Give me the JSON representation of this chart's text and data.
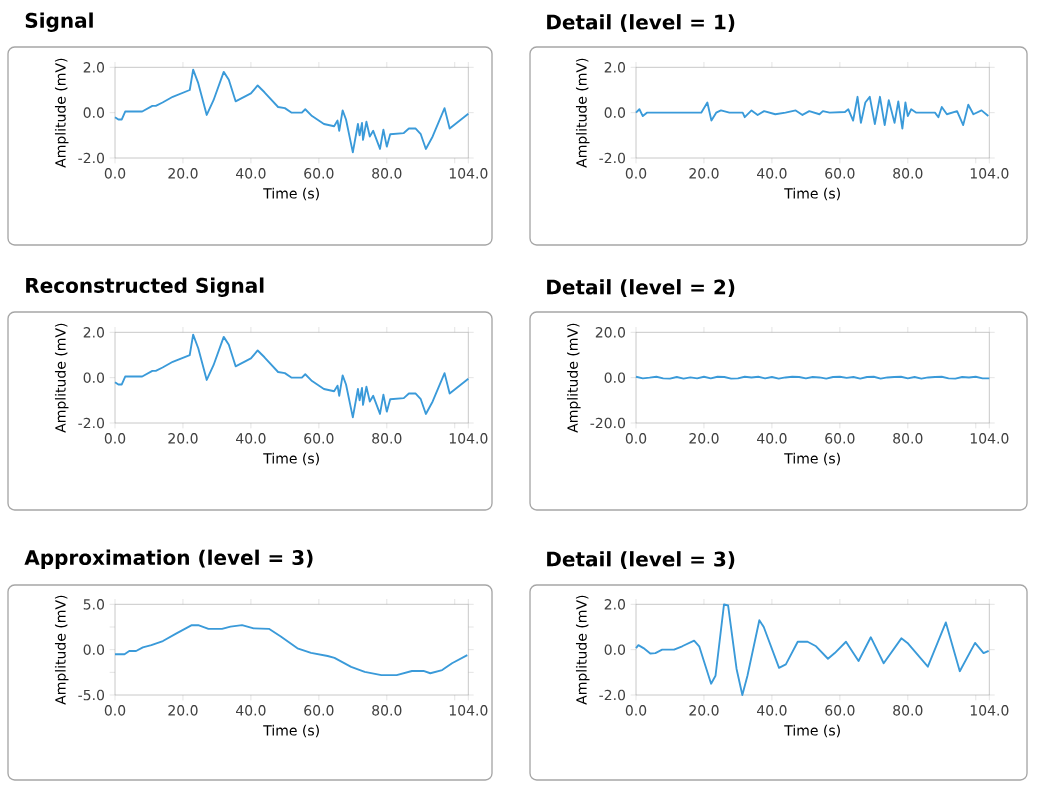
{
  "chart_data": [
    {
      "type": "line",
      "title": "Signal",
      "xlabel": "Time (s)",
      "ylabel": "Amplitude (mV)",
      "xlim": [
        0,
        104
      ],
      "ylim": [
        -2,
        2
      ],
      "xticks": [
        {
          "value": 0,
          "label": "0.0"
        },
        {
          "value": 20,
          "label": "20.0"
        },
        {
          "value": 40,
          "label": "40.0"
        },
        {
          "value": 60,
          "label": "60.0"
        },
        {
          "value": 80,
          "label": "80.0"
        },
        {
          "value": 100,
          "label": null
        },
        {
          "value": 104,
          "label": "104.0"
        }
      ],
      "yticks": [
        {
          "value": -2,
          "label": "-2.0"
        },
        {
          "value": 0,
          "label": "0.0"
        },
        {
          "value": 2,
          "label": "2.0"
        }
      ],
      "x": [
        0,
        1,
        2,
        3,
        8,
        11,
        12,
        14,
        17,
        22,
        23,
        24.5,
        27,
        29,
        32,
        33.5,
        35.5,
        40,
        42,
        44,
        48,
        50,
        52,
        55,
        56,
        58,
        61.5,
        64.5,
        65.5,
        66,
        67,
        68,
        70,
        71.5,
        72,
        72.7,
        73,
        74,
        75,
        76,
        78,
        79,
        80,
        81,
        85,
        86.5,
        88.5,
        90,
        91.5,
        93.5,
        97,
        98.5,
        104
      ],
      "series": [
        {
          "color": "#3a9ad9",
          "values": [
            -0.2,
            -0.3,
            -0.3,
            0.05,
            0.05,
            0.3,
            0.3,
            0.45,
            0.7,
            1.0,
            1.9,
            1.3,
            -0.1,
            0.55,
            1.8,
            1.45,
            0.5,
            0.85,
            1.2,
            0.9,
            0.25,
            0.2,
            0.0,
            0.0,
            0.15,
            -0.15,
            -0.5,
            -0.6,
            -0.35,
            -0.8,
            0.1,
            -0.3,
            -1.75,
            -0.5,
            -1.0,
            -0.45,
            -1.2,
            -0.4,
            -1.05,
            -0.8,
            -1.6,
            -0.75,
            -1.5,
            -0.95,
            -0.9,
            -0.7,
            -0.7,
            -0.95,
            -1.6,
            -1.05,
            0.2,
            -0.7,
            -0.05
          ]
        }
      ]
    },
    {
      "type": "line",
      "title": "Detail (level = 1)",
      "xlabel": "Time (s)",
      "ylabel": "Amplitude (mV)",
      "xlim": [
        0,
        104
      ],
      "ylim": [
        -2,
        2
      ],
      "xticks": [
        {
          "value": 0,
          "label": "0.0"
        },
        {
          "value": 20,
          "label": "20.0"
        },
        {
          "value": 40,
          "label": "40.0"
        },
        {
          "value": 60,
          "label": "60.0"
        },
        {
          "value": 80,
          "label": "80.0"
        },
        {
          "value": 100,
          "label": null
        },
        {
          "value": 104,
          "label": "104.0"
        }
      ],
      "yticks": [
        {
          "value": -2,
          "label": "-2.0"
        },
        {
          "value": 0,
          "label": "0.0"
        },
        {
          "value": 2,
          "label": "2.0"
        }
      ],
      "x": [
        0,
        1,
        2,
        3.2,
        19.2,
        21,
        22.2,
        23.6,
        25,
        27.5,
        31.4,
        32,
        34,
        35.8,
        37.7,
        41,
        44,
        47,
        49,
        51,
        54,
        55,
        57,
        61.5,
        62.5,
        63.9,
        65.2,
        66.2,
        67.5,
        68.8,
        70.3,
        71.8,
        73.2,
        74.4,
        76.1,
        77.2,
        78.4,
        79.3,
        80,
        81,
        82.5,
        88,
        89,
        90,
        91.5,
        94.5,
        96.3,
        97.8,
        99.3,
        101.7,
        103.7
      ],
      "series": [
        {
          "color": "#3a9ad9",
          "values": [
            0,
            0.15,
            -0.15,
            0,
            0,
            0.45,
            -0.35,
            0,
            0.1,
            0,
            0,
            -0.2,
            0.1,
            -0.1,
            0.07,
            -0.07,
            0,
            0.1,
            -0.1,
            0.07,
            -0.07,
            0.07,
            0,
            0.03,
            0.15,
            -0.35,
            0.7,
            -0.45,
            0.45,
            0.7,
            -0.5,
            0.7,
            -0.55,
            0.55,
            -0.45,
            0.5,
            -0.7,
            0.45,
            -0.15,
            0.15,
            0,
            0,
            -0.2,
            0.25,
            -0.07,
            0.07,
            -0.55,
            0.35,
            -0.07,
            0.1,
            -0.15
          ]
        }
      ]
    },
    {
      "type": "line",
      "title": "Reconstructed Signal",
      "xlabel": "Time (s)",
      "ylabel": "Amplitude (mV)",
      "xlim": [
        0,
        104
      ],
      "ylim": [
        -2,
        2
      ],
      "xticks": [
        {
          "value": 0,
          "label": "0.0"
        },
        {
          "value": 20,
          "label": "20.0"
        },
        {
          "value": 40,
          "label": "40.0"
        },
        {
          "value": 60,
          "label": "60.0"
        },
        {
          "value": 80,
          "label": "80.0"
        },
        {
          "value": 100,
          "label": null
        },
        {
          "value": 104,
          "label": "104.0"
        }
      ],
      "yticks": [
        {
          "value": -2,
          "label": "-2.0"
        },
        {
          "value": 0,
          "label": "0.0"
        },
        {
          "value": 2,
          "label": "2.0"
        }
      ],
      "x": [
        0,
        1,
        2,
        3,
        8,
        11,
        12,
        14,
        17,
        22,
        23,
        24.5,
        27,
        29,
        32,
        33.5,
        35.5,
        40,
        42,
        44,
        48,
        50,
        52,
        55,
        56,
        58,
        61.5,
        64.5,
        65.5,
        66,
        67,
        68,
        70,
        71.5,
        72,
        72.7,
        73,
        74,
        75,
        76,
        78,
        79,
        80,
        81,
        85,
        86.5,
        88.5,
        90,
        91.5,
        93.5,
        97,
        98.5,
        104
      ],
      "series": [
        {
          "color": "#3a9ad9",
          "values": [
            -0.2,
            -0.3,
            -0.3,
            0.05,
            0.05,
            0.3,
            0.3,
            0.45,
            0.7,
            1.0,
            1.9,
            1.3,
            -0.1,
            0.55,
            1.8,
            1.45,
            0.5,
            0.85,
            1.2,
            0.9,
            0.25,
            0.2,
            0.0,
            0.0,
            0.15,
            -0.15,
            -0.5,
            -0.6,
            -0.35,
            -0.8,
            0.1,
            -0.3,
            -1.75,
            -0.5,
            -1.0,
            -0.45,
            -1.2,
            -0.4,
            -1.05,
            -0.8,
            -1.6,
            -0.75,
            -1.5,
            -0.95,
            -0.9,
            -0.7,
            -0.7,
            -0.95,
            -1.6,
            -1.05,
            0.2,
            -0.7,
            -0.05
          ]
        }
      ]
    },
    {
      "type": "line",
      "title": "Detail (level = 2)",
      "xlabel": "Time (s)",
      "ylabel": "Amplitude (mV)",
      "xlim": [
        0,
        104
      ],
      "ylim": [
        -20,
        20
      ],
      "xticks": [
        {
          "value": 0,
          "label": "0.0"
        },
        {
          "value": 20,
          "label": "20.0"
        },
        {
          "value": 40,
          "label": "40.0"
        },
        {
          "value": 60,
          "label": "60.0"
        },
        {
          "value": 80,
          "label": "80.0"
        },
        {
          "value": 100,
          "label": null
        },
        {
          "value": 104,
          "label": "104.0"
        }
      ],
      "yticks": [
        {
          "value": -20,
          "label": "-20.0"
        },
        {
          "value": 0,
          "label": "0.0"
        },
        {
          "value": 20,
          "label": "20.0"
        }
      ],
      "x": [
        0,
        2,
        4,
        6,
        8,
        10,
        12,
        14,
        16,
        18,
        20,
        22,
        24,
        26,
        28,
        30,
        32,
        34,
        36,
        38,
        40,
        42,
        44,
        46,
        48,
        50,
        52,
        54,
        56,
        58,
        60,
        62,
        64,
        66,
        68,
        70,
        72,
        74,
        76,
        78,
        80,
        82,
        84,
        86,
        88,
        90,
        92,
        94,
        96,
        98,
        100,
        102,
        104
      ],
      "series": [
        {
          "color": "#3a9ad9",
          "values": [
            0.4,
            -0.3,
            0,
            0.4,
            -0.3,
            -0.4,
            0.3,
            -0.4,
            0.1,
            -0.3,
            0.4,
            -0.3,
            0.4,
            0.3,
            -0.4,
            -0.3,
            0.4,
            0.1,
            0.4,
            -0.3,
            0.3,
            -0.4,
            0.1,
            0.4,
            0.3,
            -0.3,
            0.3,
            0.1,
            -0.4,
            0.3,
            0.4,
            -0.1,
            0.3,
            -0.4,
            0.3,
            0.4,
            -0.4,
            0.1,
            0.3,
            0.4,
            -0.3,
            0.3,
            -0.4,
            0.1,
            0.3,
            0.4,
            -0.3,
            -0.4,
            0.3,
            0.1,
            0.4,
            -0.3,
            -0.3
          ]
        }
      ]
    },
    {
      "type": "line",
      "title": "Approximation (level = 3)",
      "xlabel": "Time (s)",
      "ylabel": "Amplitude (mV)",
      "xlim": [
        0,
        104
      ],
      "ylim": [
        -5,
        5
      ],
      "xticks": [
        {
          "value": 0,
          "label": "0.0"
        },
        {
          "value": 20,
          "label": "20.0"
        },
        {
          "value": 40,
          "label": "40.0"
        },
        {
          "value": 60,
          "label": "60.0"
        },
        {
          "value": 80,
          "label": "80.0"
        },
        {
          "value": 100,
          "label": null
        },
        {
          "value": 104,
          "label": "104.0"
        }
      ],
      "yticks": [
        {
          "value": -5,
          "label": "-5.0"
        },
        {
          "value": -2.5,
          "label": null
        },
        {
          "value": 0,
          "label": "0.0"
        },
        {
          "value": 2.5,
          "label": null
        },
        {
          "value": 5,
          "label": "5.0"
        }
      ],
      "x": [
        0,
        2.8,
        4.2,
        6.2,
        8.2,
        10.7,
        14.1,
        18.1,
        22.6,
        24.5,
        27.5,
        31.5,
        34,
        37.4,
        40.8,
        45.3,
        48.8,
        53.7,
        57.7,
        62.6,
        64.6,
        69.5,
        73.5,
        78.4,
        82.9,
        87.4,
        90.8,
        92.8,
        96.3,
        99.2,
        103.7
      ],
      "series": [
        {
          "color": "#3a9ad9",
          "values": [
            -0.5,
            -0.5,
            -0.15,
            -0.15,
            0.25,
            0.5,
            0.95,
            1.8,
            2.7,
            2.7,
            2.3,
            2.3,
            2.55,
            2.7,
            2.35,
            2.3,
            1.45,
            0.15,
            -0.35,
            -0.7,
            -0.9,
            -1.9,
            -2.45,
            -2.8,
            -2.8,
            -2.35,
            -2.35,
            -2.6,
            -2.25,
            -1.5,
            -0.6
          ]
        }
      ]
    },
    {
      "type": "line",
      "title": "Detail (level = 3)",
      "xlabel": "Time (s)",
      "ylabel": "Amplitude (mV)",
      "xlim": [
        0,
        104
      ],
      "ylim": [
        -2,
        2
      ],
      "xticks": [
        {
          "value": 0,
          "label": "0.0"
        },
        {
          "value": 20,
          "label": "20.0"
        },
        {
          "value": 40,
          "label": "40.0"
        },
        {
          "value": 60,
          "label": "60.0"
        },
        {
          "value": 80,
          "label": "80.0"
        },
        {
          "value": 100,
          "label": null
        },
        {
          "value": 104,
          "label": "104.0"
        }
      ],
      "yticks": [
        {
          "value": -2,
          "label": "-2.0"
        },
        {
          "value": 0,
          "label": "0.0"
        },
        {
          "value": 2,
          "label": "2.0"
        }
      ],
      "x": [
        0,
        0.7,
        2.2,
        4.2,
        5.7,
        7.7,
        11.2,
        13.6,
        17.1,
        18.6,
        22.1,
        23.4,
        25.9,
        27.1,
        29.6,
        31.3,
        32.8,
        36.3,
        37.6,
        42.1,
        44.1,
        47.6,
        50.5,
        53,
        56.5,
        58.5,
        61.8,
        65.5,
        69.1,
        72.9,
        78.1,
        79.9,
        85.9,
        91.2,
        95.3,
        99.8,
        102.3,
        103.8
      ],
      "series": [
        {
          "color": "#3a9ad9",
          "values": [
            0.07,
            0.2,
            0.07,
            -0.17,
            -0.15,
            0,
            0,
            0.15,
            0.4,
            0.15,
            -1.5,
            -1.15,
            2.0,
            1.95,
            -0.85,
            -2.0,
            -1.15,
            1.3,
            1.0,
            -0.8,
            -0.65,
            0.35,
            0.35,
            0.15,
            -0.4,
            -0.15,
            0.35,
            -0.5,
            0.55,
            -0.6,
            0.5,
            0.3,
            -0.75,
            1.2,
            -0.95,
            0.3,
            -0.15,
            -0.05
          ]
        }
      ]
    }
  ]
}
